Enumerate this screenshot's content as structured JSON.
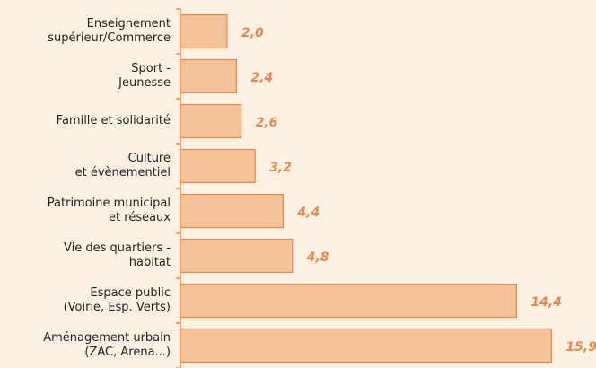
{
  "chart_data": {
    "type": "bar",
    "orientation": "horizontal",
    "categories": [
      "Enseignement\nsupérieur/Commerce",
      "Sport -\nJeunesse",
      "Famille et solidarité",
      "Culture\net évènementiel",
      "Patrimoine municipal\net réseaux",
      "Vie des quartiers -\nhabitat",
      "Espace public\n(Voirie, Esp. Verts)",
      "Aménagement urbain\n(ZAC, Arena...)"
    ],
    "values": [
      2.0,
      2.4,
      2.6,
      3.2,
      4.4,
      4.8,
      14.4,
      15.9
    ],
    "value_labels": [
      "2,0",
      "2,4",
      "2,6",
      "3,2",
      "4,4",
      "4,8",
      "14,4",
      "15,9"
    ],
    "color": "#f5c29a",
    "xlim": [
      0,
      17.5
    ]
  }
}
